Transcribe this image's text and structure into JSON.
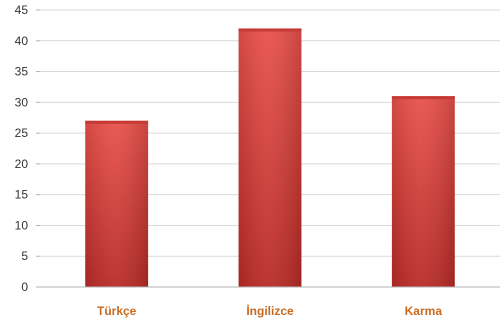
{
  "chart_data": {
    "type": "bar",
    "categories": [
      "Türkçe",
      "İngilizce",
      "Karma"
    ],
    "values": [
      27,
      42,
      31
    ],
    "ylim": [
      0,
      45
    ],
    "yticks": [
      0,
      5,
      10,
      15,
      20,
      25,
      30,
      35,
      40,
      45
    ],
    "grid": true,
    "legend": "none",
    "colors": {
      "bar_top": "#e8504a",
      "bar_bottom": "#b82a26",
      "category_label": "#c96a1e"
    }
  }
}
